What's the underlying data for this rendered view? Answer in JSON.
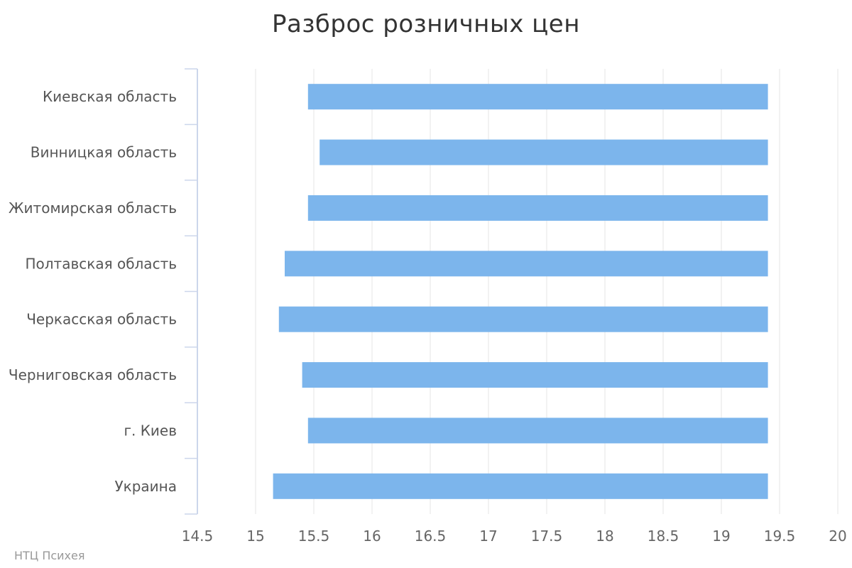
{
  "chart_data": {
    "type": "bar",
    "orientation": "horizontal",
    "title": "Разброс розничных цен",
    "categories": [
      "Киевская область",
      "Винницкая область",
      "Житомирская область",
      "Полтавская область",
      "Черкасская область",
      "Черниговская область",
      "г. Киев",
      "Украина"
    ],
    "series": [
      {
        "low": [
          15.45,
          15.55,
          15.45,
          15.25,
          15.2,
          15.4,
          15.45,
          15.15
        ],
        "high": [
          19.4,
          19.4,
          19.4,
          19.4,
          19.4,
          19.4,
          19.4,
          19.4
        ]
      }
    ],
    "xlim": [
      14.5,
      20
    ],
    "xticks": [
      "14.5",
      "15",
      "15.5",
      "16",
      "16.5",
      "17",
      "17.5",
      "18",
      "18.5",
      "19",
      "19.5",
      "20"
    ],
    "grid": true,
    "bar_color": "#7cb5ec",
    "grid_color": "#e6e6e6",
    "axis_color": "#ccd6eb"
  },
  "credit": "НТЦ Психея"
}
